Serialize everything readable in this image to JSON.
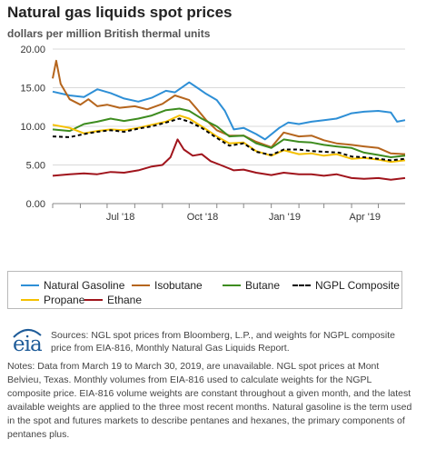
{
  "header": {
    "title": "Natural gas liquids spot prices",
    "subtitle": "dollars per million British thermal units"
  },
  "chart_data": {
    "type": "line",
    "title": "Natural gas liquids spot prices",
    "ylabel": "dollars per million British thermal units",
    "ylim": [
      0,
      20
    ],
    "y_ticks": [
      "20.00",
      "15.00",
      "10.00",
      "5.00",
      "0.00"
    ],
    "x_ticks": [
      "Jul '18",
      "Oct '18",
      "Jan '19",
      "Apr '19"
    ],
    "x_range": [
      "2018-05-01",
      "2019-05-31"
    ],
    "grid": true,
    "legend_position": "bottom",
    "series": [
      {
        "name": "Natural Gasoline",
        "color": "#2e8fd6",
        "dashed": false,
        "points": [
          [
            "2018-05-01",
            14.5
          ],
          [
            "2018-05-20",
            14.0
          ],
          [
            "2018-06-05",
            13.8
          ],
          [
            "2018-06-20",
            14.8
          ],
          [
            "2018-07-05",
            14.3
          ],
          [
            "2018-07-20",
            13.6
          ],
          [
            "2018-08-05",
            13.2
          ],
          [
            "2018-08-20",
            13.7
          ],
          [
            "2018-09-05",
            14.6
          ],
          [
            "2018-09-15",
            14.4
          ],
          [
            "2018-10-01",
            15.7
          ],
          [
            "2018-10-10",
            15.0
          ],
          [
            "2018-10-20",
            14.2
          ],
          [
            "2018-11-01",
            13.4
          ],
          [
            "2018-11-10",
            12.0
          ],
          [
            "2018-11-20",
            9.6
          ],
          [
            "2018-12-01",
            9.8
          ],
          [
            "2018-12-15",
            9.0
          ],
          [
            "2018-12-25",
            8.3
          ],
          [
            "2019-01-10",
            9.8
          ],
          [
            "2019-01-20",
            10.5
          ],
          [
            "2019-02-01",
            10.3
          ],
          [
            "2019-02-15",
            10.6
          ],
          [
            "2019-03-01",
            10.8
          ],
          [
            "2019-03-15",
            11.0
          ],
          [
            "2019-04-01",
            11.7
          ],
          [
            "2019-04-15",
            11.9
          ],
          [
            "2019-05-01",
            12.0
          ],
          [
            "2019-05-15",
            11.8
          ],
          [
            "2019-05-22",
            10.6
          ],
          [
            "2019-05-31",
            10.8
          ]
        ]
      },
      {
        "name": "Isobutane",
        "color": "#b5651d",
        "dashed": false,
        "points": [
          [
            "2018-05-01",
            16.2
          ],
          [
            "2018-05-05",
            18.5
          ],
          [
            "2018-05-10",
            15.5
          ],
          [
            "2018-05-20",
            13.5
          ],
          [
            "2018-06-01",
            12.8
          ],
          [
            "2018-06-10",
            13.5
          ],
          [
            "2018-06-20",
            12.6
          ],
          [
            "2018-07-01",
            12.8
          ],
          [
            "2018-07-15",
            12.4
          ],
          [
            "2018-08-01",
            12.6
          ],
          [
            "2018-08-15",
            12.2
          ],
          [
            "2018-09-01",
            12.9
          ],
          [
            "2018-09-15",
            14.0
          ],
          [
            "2018-10-01",
            13.4
          ],
          [
            "2018-10-10",
            12.2
          ],
          [
            "2018-10-20",
            10.8
          ],
          [
            "2018-11-01",
            9.5
          ],
          [
            "2018-11-15",
            8.8
          ],
          [
            "2018-12-01",
            8.8
          ],
          [
            "2018-12-15",
            8.0
          ],
          [
            "2019-01-01",
            7.3
          ],
          [
            "2019-01-15",
            9.2
          ],
          [
            "2019-02-01",
            8.7
          ],
          [
            "2019-02-15",
            8.8
          ],
          [
            "2019-03-01",
            8.2
          ],
          [
            "2019-03-15",
            7.8
          ],
          [
            "2019-04-01",
            7.6
          ],
          [
            "2019-04-15",
            7.4
          ],
          [
            "2019-05-01",
            7.2
          ],
          [
            "2019-05-15",
            6.5
          ],
          [
            "2019-05-31",
            6.4
          ]
        ]
      },
      {
        "name": "Butane",
        "color": "#3d8c1f",
        "dashed": false,
        "points": [
          [
            "2018-05-01",
            9.6
          ],
          [
            "2018-05-20",
            9.4
          ],
          [
            "2018-06-05",
            10.3
          ],
          [
            "2018-06-20",
            10.6
          ],
          [
            "2018-07-05",
            11.0
          ],
          [
            "2018-07-20",
            10.7
          ],
          [
            "2018-08-05",
            11.0
          ],
          [
            "2018-08-20",
            11.4
          ],
          [
            "2018-09-05",
            12.1
          ],
          [
            "2018-09-20",
            12.3
          ],
          [
            "2018-10-01",
            12.0
          ],
          [
            "2018-10-15",
            11.0
          ],
          [
            "2018-11-01",
            10.0
          ],
          [
            "2018-11-15",
            8.7
          ],
          [
            "2018-12-01",
            8.8
          ],
          [
            "2018-12-15",
            7.8
          ],
          [
            "2019-01-01",
            7.2
          ],
          [
            "2019-01-15",
            8.3
          ],
          [
            "2019-02-01",
            8.0
          ],
          [
            "2019-02-15",
            7.9
          ],
          [
            "2019-03-01",
            7.6
          ],
          [
            "2019-03-15",
            7.4
          ],
          [
            "2019-04-01",
            7.2
          ],
          [
            "2019-04-15",
            6.6
          ],
          [
            "2019-05-01",
            6.3
          ],
          [
            "2019-05-15",
            6.0
          ],
          [
            "2019-05-31",
            6.2
          ]
        ]
      },
      {
        "name": "NGPL Composite",
        "color": "#000000",
        "dashed": true,
        "points": [
          [
            "2018-05-01",
            8.7
          ],
          [
            "2018-05-20",
            8.6
          ],
          [
            "2018-06-05",
            9.0
          ],
          [
            "2018-06-20",
            9.3
          ],
          [
            "2018-07-05",
            9.5
          ],
          [
            "2018-07-20",
            9.3
          ],
          [
            "2018-08-05",
            9.7
          ],
          [
            "2018-08-20",
            10.0
          ],
          [
            "2018-09-05",
            10.5
          ],
          [
            "2018-09-20",
            11.0
          ],
          [
            "2018-10-01",
            10.6
          ],
          [
            "2018-10-15",
            9.8
          ],
          [
            "2018-11-01",
            8.5
          ],
          [
            "2018-11-15",
            7.5
          ],
          [
            "2018-12-01",
            7.8
          ],
          [
            "2018-12-15",
            6.7
          ],
          [
            "2019-01-01",
            6.3
          ],
          [
            "2019-01-15",
            7.0
          ],
          [
            "2019-02-01",
            7.0
          ],
          [
            "2019-02-15",
            6.8
          ],
          [
            "2019-03-01",
            6.7
          ],
          [
            "2019-03-18",
            6.6
          ],
          [
            "2019-04-01",
            6.1
          ],
          [
            "2019-04-15",
            6.0
          ],
          [
            "2019-05-01",
            5.8
          ],
          [
            "2019-05-15",
            5.6
          ],
          [
            "2019-05-31",
            5.8
          ]
        ]
      },
      {
        "name": "Propane",
        "color": "#f5c000",
        "dashed": false,
        "points": [
          [
            "2018-05-01",
            10.2
          ],
          [
            "2018-05-20",
            9.8
          ],
          [
            "2018-06-05",
            9.1
          ],
          [
            "2018-06-20",
            9.4
          ],
          [
            "2018-07-05",
            9.6
          ],
          [
            "2018-07-20",
            9.5
          ],
          [
            "2018-08-05",
            9.8
          ],
          [
            "2018-08-20",
            10.2
          ],
          [
            "2018-09-05",
            10.6
          ],
          [
            "2018-09-20",
            11.4
          ],
          [
            "2018-10-01",
            11.0
          ],
          [
            "2018-10-15",
            10.0
          ],
          [
            "2018-11-01",
            8.7
          ],
          [
            "2018-11-15",
            7.8
          ],
          [
            "2018-12-01",
            7.9
          ],
          [
            "2018-12-15",
            6.8
          ],
          [
            "2019-01-01",
            6.2
          ],
          [
            "2019-01-15",
            6.9
          ],
          [
            "2019-02-01",
            6.4
          ],
          [
            "2019-02-15",
            6.5
          ],
          [
            "2019-03-01",
            6.2
          ],
          [
            "2019-03-15",
            6.4
          ],
          [
            "2019-04-01",
            5.8
          ],
          [
            "2019-04-15",
            5.9
          ],
          [
            "2019-05-01",
            5.7
          ],
          [
            "2019-05-15",
            5.4
          ],
          [
            "2019-05-31",
            5.6
          ]
        ]
      },
      {
        "name": "Ethane",
        "color": "#a0141c",
        "dashed": false,
        "points": [
          [
            "2018-05-01",
            3.6
          ],
          [
            "2018-05-20",
            3.8
          ],
          [
            "2018-06-05",
            3.9
          ],
          [
            "2018-06-20",
            3.8
          ],
          [
            "2018-07-05",
            4.1
          ],
          [
            "2018-07-20",
            4.0
          ],
          [
            "2018-08-05",
            4.3
          ],
          [
            "2018-08-20",
            4.8
          ],
          [
            "2018-09-01",
            5.0
          ],
          [
            "2018-09-10",
            6.0
          ],
          [
            "2018-09-18",
            8.3
          ],
          [
            "2018-09-25",
            7.0
          ],
          [
            "2018-10-05",
            6.2
          ],
          [
            "2018-10-15",
            6.4
          ],
          [
            "2018-10-25",
            5.5
          ],
          [
            "2018-11-05",
            5.0
          ],
          [
            "2018-11-20",
            4.3
          ],
          [
            "2018-12-01",
            4.4
          ],
          [
            "2018-12-15",
            4.0
          ],
          [
            "2019-01-01",
            3.7
          ],
          [
            "2019-01-15",
            4.0
          ],
          [
            "2019-02-01",
            3.8
          ],
          [
            "2019-02-15",
            3.8
          ],
          [
            "2019-03-01",
            3.6
          ],
          [
            "2019-03-15",
            3.8
          ],
          [
            "2019-04-01",
            3.3
          ],
          [
            "2019-04-15",
            3.2
          ],
          [
            "2019-05-01",
            3.3
          ],
          [
            "2019-05-15",
            3.1
          ],
          [
            "2019-05-31",
            3.3
          ]
        ]
      }
    ]
  },
  "legend": {
    "items": [
      {
        "label": "Natural Gasoline",
        "color": "#2e8fd6",
        "dashed": false
      },
      {
        "label": "Isobutane",
        "color": "#b5651d",
        "dashed": false
      },
      {
        "label": "Butane",
        "color": "#3d8c1f",
        "dashed": false
      },
      {
        "label": "NGPL Composite",
        "color": "#000000",
        "dashed": true
      },
      {
        "label": "Propane",
        "color": "#f5c000",
        "dashed": false
      },
      {
        "label": "Ethane",
        "color": "#a0141c",
        "dashed": false
      }
    ]
  },
  "footer": {
    "logo_text": "eia",
    "sources": "Sources: NGL spot prices from Bloomberg, L.P., and weights for NGPL composite price from EIA-816, Monthly Natural Gas Liquids Report.",
    "notes": "Notes: Data from March 19 to March 30, 2019, are unavailable. NGL spot prices at Mont Belvieu, Texas. Monthly volumes from EIA-816 used to calculate weights for the NGPL composite price. EIA-816 volume weights are constant throughout a given month, and the latest available weights are applied to the three most recent months. Natural gasoline is the term used in the spot and futures markets to describe pentanes and hexanes, the primary components of pentanes plus."
  }
}
